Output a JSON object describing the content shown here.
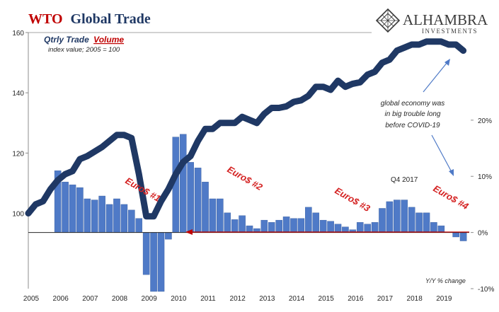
{
  "header": {
    "title_prefix": "WTO",
    "title_rest": "Global Trade",
    "brand_name": "ALHAMBRA",
    "brand_sub": "INVESTMENTS"
  },
  "colors": {
    "volume_line": "#1f3864",
    "bars": "#4f7ac7",
    "bar_edge": "#3a5f9e",
    "annotation_red": "#d42020",
    "arrow_blue": "#4f7ac7",
    "grid": "#7f7f7f"
  },
  "chart_data": {
    "type": "line+bar",
    "series_labels": {
      "line_title_part1": "Qtrly Trade",
      "line_title_part2": "Volume",
      "line_subtitle": "index value; 2005 = 100",
      "bar_axis_label": "Y/Y % change"
    },
    "left_axis": {
      "range": [
        75,
        160
      ],
      "ticks": [
        100,
        120,
        140,
        160
      ]
    },
    "right_axis": {
      "range": [
        -10,
        35.6
      ],
      "ticks": [
        -10,
        0,
        10,
        20
      ],
      "tick_labels": [
        "-10%",
        "0%",
        "10%",
        "20%"
      ]
    },
    "x_axis": {
      "start": 2005.0,
      "end": 2020.0,
      "year_labels": [
        "2005",
        "2006",
        "2007",
        "2008",
        "2009",
        "2010",
        "2011",
        "2012",
        "2013",
        "2014",
        "2015",
        "2016",
        "2017",
        "2018",
        "2019"
      ]
    },
    "volume_index": {
      "x": [
        2005.0,
        2005.25,
        2005.5,
        2005.75,
        2006.0,
        2006.25,
        2006.5,
        2006.75,
        2007.0,
        2007.25,
        2007.5,
        2007.75,
        2008.0,
        2008.25,
        2008.5,
        2008.75,
        2009.0,
        2009.25,
        2009.5,
        2009.75,
        2010.0,
        2010.25,
        2010.5,
        2010.75,
        2011.0,
        2011.25,
        2011.5,
        2011.75,
        2012.0,
        2012.25,
        2012.5,
        2012.75,
        2013.0,
        2013.25,
        2013.5,
        2013.75,
        2014.0,
        2014.25,
        2014.5,
        2014.75,
        2015.0,
        2015.25,
        2015.5,
        2015.75,
        2016.0,
        2016.25,
        2016.5,
        2016.75,
        2017.0,
        2017.25,
        2017.5,
        2017.75,
        2018.0,
        2018.25,
        2018.5,
        2018.75,
        2019.0,
        2019.25,
        2019.5,
        2019.75
      ],
      "y": [
        100,
        103,
        104,
        108,
        111,
        113,
        114,
        118,
        119,
        120.5,
        122,
        124,
        126,
        126,
        125,
        113,
        99,
        99,
        104,
        108,
        113,
        117,
        119,
        124,
        128,
        128,
        130,
        130,
        130,
        132,
        131,
        130,
        133,
        135,
        135,
        135.5,
        137,
        137.5,
        139,
        142,
        142,
        141,
        144,
        142,
        143,
        143.5,
        146,
        147,
        150,
        151,
        154,
        155,
        156,
        156,
        157,
        157,
        157,
        156,
        156,
        154
      ]
    },
    "yoy_change": {
      "x": [
        2006.0,
        2006.25,
        2006.5,
        2006.75,
        2007.0,
        2007.25,
        2007.5,
        2007.75,
        2008.0,
        2008.25,
        2008.5,
        2008.75,
        2009.0,
        2009.25,
        2009.5,
        2009.75,
        2010.0,
        2010.25,
        2010.5,
        2010.75,
        2011.0,
        2011.25,
        2011.5,
        2011.75,
        2012.0,
        2012.25,
        2012.5,
        2012.75,
        2013.0,
        2013.25,
        2013.5,
        2013.75,
        2014.0,
        2014.25,
        2014.5,
        2014.75,
        2015.0,
        2015.25,
        2015.5,
        2015.75,
        2016.0,
        2016.25,
        2016.5,
        2016.75,
        2017.0,
        2017.25,
        2017.5,
        2017.75,
        2018.0,
        2018.25,
        2018.5,
        2018.75,
        2019.0,
        2019.25,
        2019.5,
        2019.75
      ],
      "y": [
        11,
        9,
        8.5,
        8,
        6,
        5.8,
        6.5,
        5,
        6,
        5,
        4,
        2.5,
        -7.5,
        -10.5,
        -10.5,
        -1.2,
        17,
        17.5,
        12.5,
        11.5,
        9,
        6,
        6,
        3.5,
        2.3,
        3,
        1.2,
        0.7,
        2.2,
        1.8,
        2.2,
        2.8,
        2.5,
        2.5,
        4.5,
        3.5,
        2.2,
        2,
        1.5,
        1,
        0.5,
        1.8,
        1.5,
        1.8,
        4.3,
        5.5,
        5.8,
        5.8,
        4.5,
        3.5,
        3.5,
        1.8,
        1.2,
        0.1,
        -0.8,
        -1.5
      ]
    },
    "annotations": {
      "euro1": "Euro$ #1",
      "euro2": "Euro$ #2",
      "euro3": "Euro$ #3",
      "euro4": "Euro$ #4",
      "q4_2017": "Q4 2017",
      "note_line1": "global economy was",
      "note_line2": "in big trouble long",
      "note_line3": "before COVID-19"
    }
  }
}
